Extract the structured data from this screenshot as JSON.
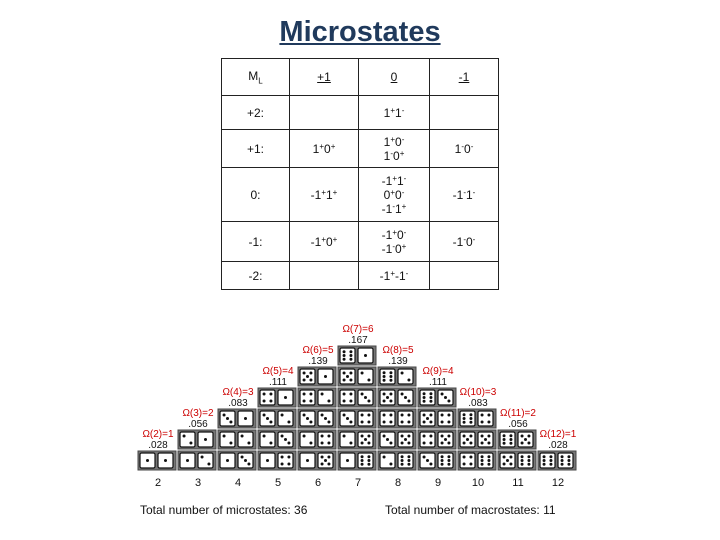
{
  "title": "Microstates",
  "table": {
    "header": [
      "ML",
      "+1",
      "0",
      "-1"
    ],
    "rows": [
      {
        "label": "+2:",
        "cells": [
          [],
          [
            "1+1-"
          ],
          []
        ]
      },
      {
        "label": "+1:",
        "cells": [
          [
            "1+0+"
          ],
          [
            "1+0-",
            "1-0+"
          ],
          [
            "1-0-"
          ]
        ]
      },
      {
        "label": "0:",
        "cells": [
          [
            "-1+1+"
          ],
          [
            "-1+1-",
            "0+0-",
            "-1-1+"
          ],
          [
            "-1-1-"
          ]
        ]
      },
      {
        "label": "-1:",
        "cells": [
          [
            "-1+0+"
          ],
          [
            "-1+0-",
            "-1-0+"
          ],
          [
            "-1-0-"
          ]
        ]
      },
      {
        "label": "-2:",
        "cells": [
          [],
          [
            "-1+-1-"
          ],
          []
        ]
      }
    ]
  },
  "dice_figure": {
    "sums": [
      2,
      3,
      4,
      5,
      6,
      7,
      8,
      9,
      10,
      11,
      12
    ],
    "counts": [
      1,
      2,
      3,
      4,
      5,
      6,
      5,
      4,
      3,
      2,
      1
    ],
    "omega_labels": [
      "Ω(2)=1",
      "Ω(3)=2",
      "Ω(4)=3",
      "Ω(5)=4",
      "Ω(6)=5",
      "Ω(7)=6",
      "Ω(8)=5",
      "Ω(9)=4",
      "Ω(10)=3",
      "Ω(11)=2",
      "Ω(12)=1"
    ],
    "probabilities": [
      ".028",
      ".056",
      ".083",
      ".111",
      ".139",
      ".167",
      ".139",
      ".111",
      ".083",
      ".056",
      ".028"
    ],
    "total_microstates": "Total number of microstates: 36",
    "total_macrostates": "Total number of macrostates: 11",
    "label_color": "#cc0000"
  }
}
